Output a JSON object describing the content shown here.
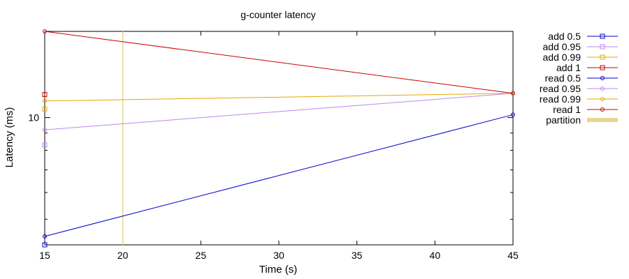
{
  "chart_data": {
    "type": "line",
    "title": "g-counter latency",
    "xlabel": "Time (s)",
    "ylabel": "Latency (ms)",
    "xlim": [
      15,
      45
    ],
    "ylim": [
      4.2,
      18
    ],
    "y_scale": "log",
    "x_ticks": [
      15,
      20,
      25,
      30,
      35,
      40,
      45
    ],
    "y_tick_labels": [
      {
        "value": 10,
        "label": "10"
      }
    ],
    "y_minor_ticks": [
      5,
      6,
      7,
      8,
      9
    ],
    "grid": false,
    "legend_position": "right",
    "series": [
      {
        "name": "add 0.5",
        "color": "#0000cc",
        "marker": "square",
        "line": true,
        "points": [
          [
            15,
            4.2
          ]
        ]
      },
      {
        "name": "add 0.95",
        "color": "#bb88ee",
        "marker": "square",
        "line": true,
        "points": [
          [
            15,
            8.3
          ]
        ]
      },
      {
        "name": "add 0.99",
        "color": "#e8a800",
        "marker": "square",
        "line": true,
        "points": [
          [
            15,
            10.6
          ]
        ]
      },
      {
        "name": "add 1",
        "color": "#cc0000",
        "marker": "square",
        "line": true,
        "points": [
          [
            15,
            11.7
          ]
        ]
      },
      {
        "name": "read 0.5",
        "color": "#0000cc",
        "marker": "circle",
        "line": true,
        "points": [
          [
            15,
            4.45
          ],
          [
            45,
            10.2
          ]
        ]
      },
      {
        "name": "read 0.95",
        "color": "#bb88ee",
        "marker": "circle",
        "line": true,
        "points": [
          [
            15,
            9.2
          ],
          [
            45,
            11.8
          ]
        ]
      },
      {
        "name": "read 0.99",
        "color": "#e8a800",
        "marker": "circle",
        "line": true,
        "points": [
          [
            15,
            11.2
          ],
          [
            45,
            11.8
          ]
        ]
      },
      {
        "name": "read 1",
        "color": "#cc0000",
        "marker": "circle",
        "line": true,
        "points": [
          [
            15,
            18.0
          ],
          [
            45,
            11.8
          ]
        ]
      }
    ],
    "partition": {
      "name": "partition",
      "color": "#e8d590",
      "x": 20
    }
  }
}
